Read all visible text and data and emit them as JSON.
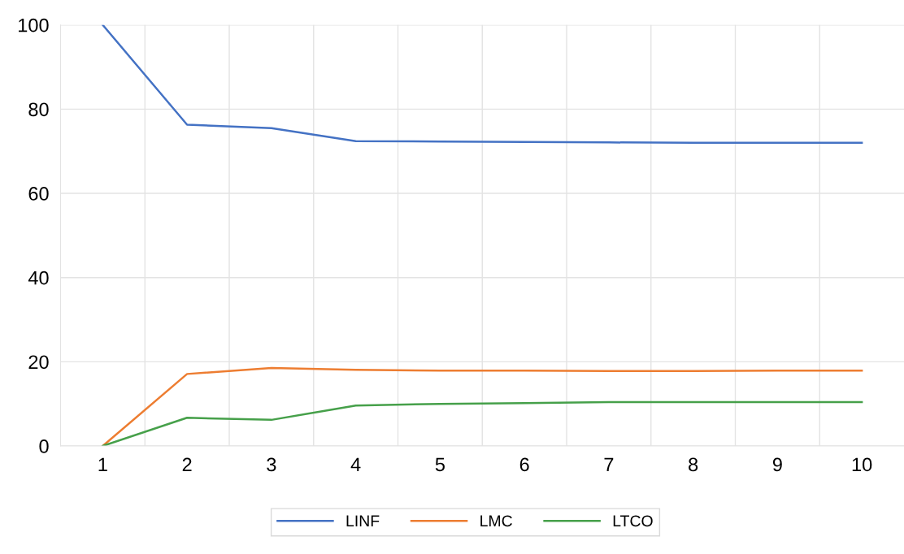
{
  "chart_data": {
    "type": "line",
    "categories": [
      "1",
      "2",
      "3",
      "4",
      "5",
      "6",
      "7",
      "8",
      "9",
      "10"
    ],
    "series": [
      {
        "name": "LINF",
        "color": "#4472c4",
        "values": [
          100,
          76.3,
          75.5,
          72.4,
          72.3,
          72.2,
          72.1,
          72.0,
          72.0,
          72.0
        ]
      },
      {
        "name": "LMC",
        "color": "#ed7d31",
        "values": [
          0,
          17.1,
          18.5,
          18.1,
          17.9,
          17.9,
          17.8,
          17.8,
          17.9,
          17.9
        ]
      },
      {
        "name": "LTCO",
        "color": "#46a04a",
        "values": [
          0,
          6.7,
          6.2,
          9.6,
          10.0,
          10.2,
          10.4,
          10.4,
          10.4,
          10.4
        ]
      }
    ],
    "ylim": [
      0,
      100
    ],
    "yticks": [
      0,
      20,
      40,
      60,
      80,
      100
    ],
    "grid": true,
    "legend": "bottom",
    "marker": "none",
    "line_style": "solid"
  }
}
